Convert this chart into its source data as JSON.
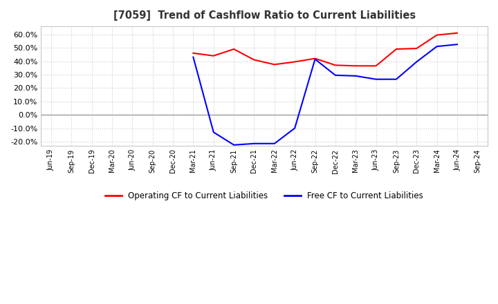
{
  "title": "[7059]  Trend of Cashflow Ratio to Current Liabilities",
  "x_labels": [
    "Jun-19",
    "Sep-19",
    "Dec-19",
    "Mar-20",
    "Jun-20",
    "Sep-20",
    "Dec-20",
    "Mar-21",
    "Jun-21",
    "Sep-21",
    "Dec-21",
    "Mar-22",
    "Jun-22",
    "Sep-22",
    "Dec-22",
    "Mar-23",
    "Jun-23",
    "Sep-23",
    "Dec-23",
    "Mar-24",
    "Jun-24",
    "Sep-24"
  ],
  "operating_cf": [
    null,
    null,
    null,
    null,
    null,
    null,
    null,
    46.0,
    44.0,
    49.0,
    41.0,
    37.5,
    39.5,
    42.0,
    37.0,
    36.5,
    36.5,
    49.0,
    49.5,
    59.5,
    61.0,
    null
  ],
  "free_cf_full": [
    null,
    null,
    null,
    null,
    null,
    null,
    null,
    43.0,
    -13.0,
    -22.5,
    -21.5,
    -21.5,
    -10.0,
    41.5,
    29.5,
    29.0,
    26.5,
    26.5,
    39.5,
    51.0,
    52.5,
    null
  ],
  "ylim": [
    -23.0,
    66.0
  ],
  "yticks": [
    -20.0,
    -10.0,
    0.0,
    10.0,
    20.0,
    30.0,
    40.0,
    50.0,
    60.0
  ],
  "operating_color": "#ff0000",
  "free_color": "#0000ff",
  "grid_color": "#cccccc",
  "background_color": "#ffffff",
  "plot_bg_color": "#ffffff",
  "zero_line_color": "#888888"
}
